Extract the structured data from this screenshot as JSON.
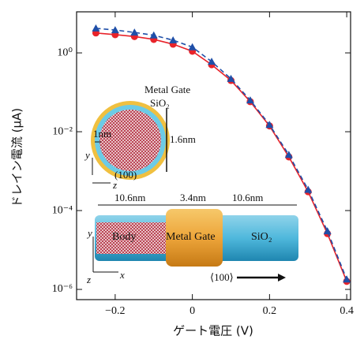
{
  "chart_data": {
    "type": "line",
    "xlabel": "ゲート電圧 (V)",
    "ylabel": "ドレイン電流 (μA)",
    "x": [
      -0.25,
      -0.2,
      -0.15,
      -0.1,
      -0.05,
      0,
      0.05,
      0.1,
      0.15,
      0.2,
      0.25,
      0.3,
      0.35,
      0.4
    ],
    "series": [
      {
        "color": "#e8232a",
        "marker": "circle",
        "dashed": false,
        "values": [
          3.2,
          2.9,
          2.6,
          2.2,
          1.66,
          1.1,
          0.5,
          0.2,
          0.058,
          0.014,
          0.0023,
          0.0003,
          2.6e-05,
          1.6e-06
        ]
      },
      {
        "color": "#1f4fa8",
        "marker": "triangle",
        "dashed": true,
        "values": [
          4.2,
          3.8,
          3.3,
          2.8,
          2.1,
          1.4,
          0.6,
          0.22,
          0.063,
          0.015,
          0.0026,
          0.00034,
          3e-05,
          1.8e-06
        ]
      }
    ],
    "xlim": [
      -0.3,
      0.41
    ],
    "xticks": [
      {
        "value": -0.2,
        "label": "−0.2"
      },
      0,
      0.2,
      0.4
    ],
    "ylim": [
      5.5e-07,
      11
    ],
    "log_y": true,
    "yticks": [
      {
        "value": 1,
        "label": "10⁰"
      },
      {
        "value": 0.01,
        "label": "10⁻²"
      },
      {
        "value": 0.0001,
        "label": "10⁻⁴"
      },
      {
        "value": 1e-06,
        "label": "10⁻⁶"
      }
    ],
    "annotations": [
      "Metal Gate",
      "SiO₂",
      "1nm",
      "1.6nm",
      "(100)",
      "y",
      "z",
      "10.6nm",
      "3.4nm",
      "10.6nm",
      "Body",
      "Metal Gate",
      "SiO₂",
      "⟨100⟩",
      "y",
      "z",
      "x"
    ]
  }
}
